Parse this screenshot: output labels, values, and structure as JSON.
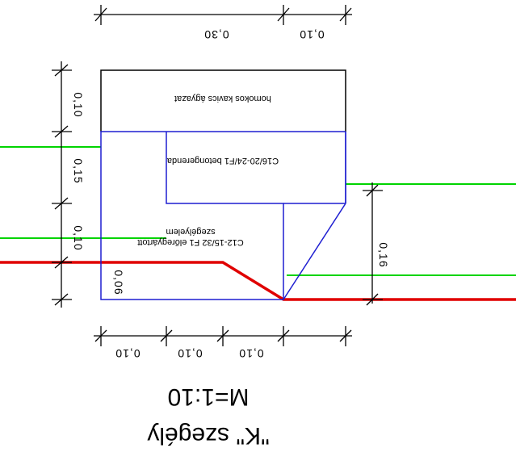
{
  "colors": {
    "outline": "#000000",
    "concrete": "#1f1fd1",
    "terrain": "#00d400",
    "ground": "#e00000",
    "dimension": "#000000"
  },
  "title": {
    "name": "\"K\" szegély",
    "scale": "M=1:10"
  },
  "layers": {
    "top": "homokos kavics ágyazat",
    "middle": "C16/20-24/F1 betongerenda",
    "element_line1": "C12-15/32 F1 előregyártott",
    "element_line2": "szegélyelem"
  },
  "dimensions": {
    "top_left": "0,30",
    "top_right": "0,10",
    "left_1": "0,10",
    "left_2": "0,15",
    "left_3": "0,10",
    "left_4": "0,06",
    "right": "0,16",
    "bottom_1": "0,10",
    "bottom_2": "0,10",
    "bottom_3": "0,10"
  }
}
